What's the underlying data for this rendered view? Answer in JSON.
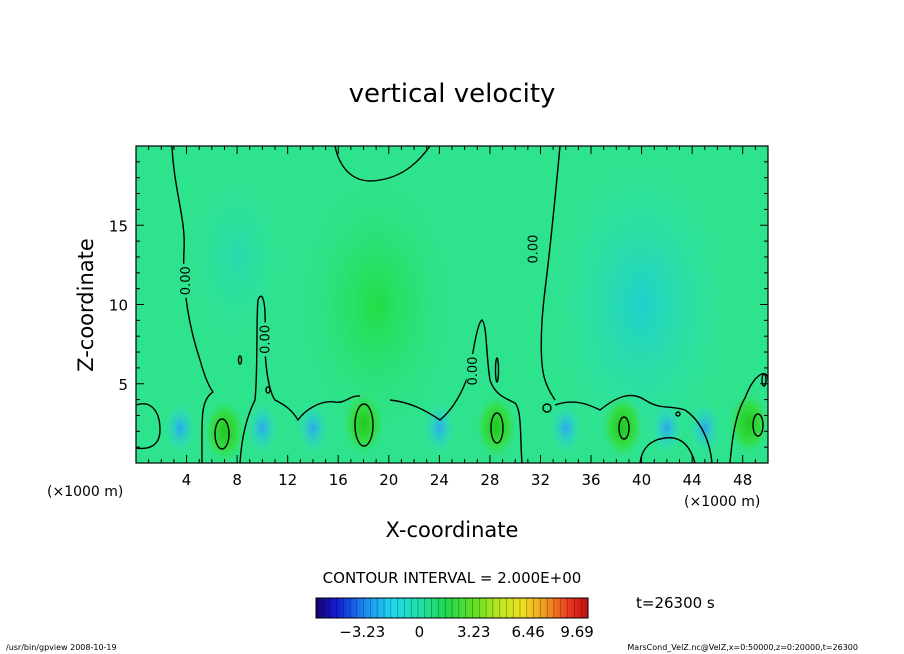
{
  "chart_data": {
    "type": "heatmap",
    "title": "vertical velocity",
    "xlabel": "X-coordinate",
    "ylabel": "Z-coordinate",
    "x_unit_left": "(×1000 m)",
    "x_unit_right": "(×1000 m)",
    "xlim": [
      0,
      50
    ],
    "ylim": [
      0,
      20
    ],
    "x_ticks": [
      4,
      8,
      12,
      16,
      20,
      24,
      28,
      32,
      36,
      40,
      44,
      48
    ],
    "y_ticks": [
      5,
      10,
      15
    ],
    "contour_labels": [
      {
        "text": "0.00",
        "x": 4.0,
        "z": 11.5
      },
      {
        "text": "0.00",
        "x": 10.3,
        "z": 7.8
      },
      {
        "text": "0.00",
        "x": 26.7,
        "z": 5.8
      },
      {
        "text": "0.00",
        "x": 31.5,
        "z": 13.5
      }
    ],
    "contour_interval": "CONTOUR INTERVAL = 2.000E+00",
    "time_label": "t=26300 s",
    "colorbar": {
      "min": -3.23,
      "max": 9.69,
      "tick_labels": [
        "-3.23",
        "0",
        "3.23",
        "6.46",
        "9.69"
      ],
      "tick_values": [
        -3.23,
        0,
        3.23,
        6.46,
        9.69
      ]
    },
    "updrafts": [
      {
        "x": 7,
        "z": 2.0
      },
      {
        "x": 18,
        "z": 2.5
      },
      {
        "x": 28.5,
        "z": 2.3
      },
      {
        "x": 38.5,
        "z": 2.3
      },
      {
        "x": 48.5,
        "z": 2.5
      }
    ]
  },
  "footer": {
    "left": "/usr/bin/gpview   2008-10-19",
    "right": "MarsCond_VelZ.nc@VelZ,x=0:50000,z=0:20000,t=26300"
  }
}
